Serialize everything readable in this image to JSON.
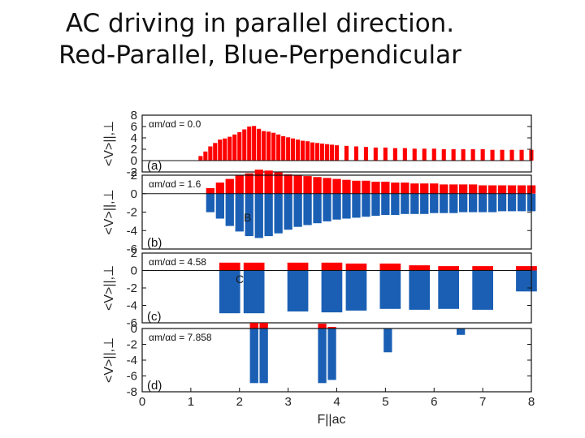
{
  "slide": {
    "title_line1": "AC driving in parallel direction.",
    "title_line2": "Red-Parallel, Blue-Perpendicular"
  },
  "colors": {
    "parallel": "#ff0000",
    "perpendicular": "#1a5fb4",
    "axis": "#111111"
  },
  "chart_data": [
    {
      "type": "bar",
      "panel": "(a)",
      "ratio_label": "αm/αd = 0.0",
      "letter": "",
      "ylabel": "<V>||,⊥",
      "xlabel": "F||ac",
      "xlim": [
        0,
        8
      ],
      "ylim": [
        -2,
        8
      ],
      "yticks": [
        -2,
        0,
        2,
        4,
        6,
        8
      ],
      "xticks": [],
      "series": [
        {
          "name": "Parallel",
          "color": "#ff0000",
          "x": [
            1.2,
            1.3,
            1.4,
            1.5,
            1.6,
            1.7,
            1.8,
            1.9,
            2.0,
            2.1,
            2.2,
            2.3,
            2.4,
            2.5,
            2.6,
            2.7,
            2.8,
            2.9,
            3.0,
            3.1,
            3.2,
            3.3,
            3.4,
            3.5,
            3.6,
            3.7,
            3.8,
            3.9,
            4.0,
            4.2,
            4.4,
            4.6,
            4.8,
            5.0,
            5.2,
            5.4,
            5.6,
            5.8,
            6.0,
            6.2,
            6.4,
            6.6,
            6.8,
            7.0,
            7.2,
            7.4,
            7.6,
            7.8,
            8.0
          ],
          "values": [
            0.8,
            1.6,
            2.5,
            3.1,
            3.7,
            3.9,
            4.2,
            4.6,
            5.0,
            5.5,
            6.0,
            6.1,
            5.6,
            5.2,
            5.1,
            4.9,
            4.6,
            4.3,
            4.1,
            3.9,
            3.7,
            3.5,
            3.4,
            3.2,
            3.1,
            3.0,
            2.9,
            2.8,
            2.7,
            2.6,
            2.5,
            2.4,
            2.3,
            2.3,
            2.2,
            2.2,
            2.1,
            2.1,
            2.1,
            2.0,
            2.0,
            2.0,
            2.0,
            2.0,
            1.9,
            1.9,
            1.9,
            1.9,
            1.9
          ]
        }
      ]
    },
    {
      "type": "bar",
      "panel": "(b)",
      "ratio_label": "αm/αd = 1.6",
      "letter": "B",
      "ylabel": "<V>||,⊥",
      "xlabel": "F||ac",
      "xlim": [
        0,
        8
      ],
      "ylim": [
        -6,
        2
      ],
      "yticks": [
        -6,
        -4,
        -2,
        0,
        2
      ],
      "xticks": [],
      "series": [
        {
          "name": "Parallel",
          "color": "#ff0000",
          "x": [
            1.4,
            1.6,
            1.8,
            2.0,
            2.2,
            2.4,
            2.6,
            2.8,
            3.0,
            3.2,
            3.4,
            3.6,
            3.8,
            4.0,
            4.2,
            4.4,
            4.6,
            4.8,
            5.0,
            5.2,
            5.4,
            5.6,
            5.8,
            6.0,
            6.2,
            6.4,
            6.6,
            6.8,
            7.0,
            7.2,
            7.4,
            7.6,
            7.8,
            8.0
          ],
          "values": [
            0.6,
            1.2,
            1.6,
            2.0,
            2.2,
            2.6,
            2.5,
            2.3,
            2.1,
            2.0,
            1.9,
            1.8,
            1.7,
            1.6,
            1.5,
            1.4,
            1.4,
            1.3,
            1.3,
            1.2,
            1.2,
            1.1,
            1.1,
            1.1,
            1.0,
            1.0,
            1.0,
            1.0,
            0.9,
            0.9,
            0.9,
            0.9,
            0.9,
            0.9
          ]
        },
        {
          "name": "Perpendicular",
          "color": "#1a5fb4",
          "x": [
            1.4,
            1.6,
            1.8,
            2.0,
            2.2,
            2.4,
            2.6,
            2.8,
            3.0,
            3.2,
            3.4,
            3.6,
            3.8,
            4.0,
            4.2,
            4.4,
            4.6,
            4.8,
            5.0,
            5.2,
            5.4,
            5.6,
            5.8,
            6.0,
            6.2,
            6.4,
            6.6,
            6.8,
            7.0,
            7.2,
            7.4,
            7.6,
            7.8,
            8.0
          ],
          "values": [
            -2.0,
            -2.7,
            -3.5,
            -4.1,
            -4.6,
            -4.8,
            -4.6,
            -4.3,
            -3.9,
            -3.6,
            -3.4,
            -3.2,
            -3.0,
            -2.8,
            -2.7,
            -2.6,
            -2.5,
            -2.4,
            -2.3,
            -2.3,
            -2.2,
            -2.2,
            -2.2,
            -2.1,
            -2.1,
            -2.1,
            -2.0,
            -2.0,
            -2.0,
            -2.0,
            -1.9,
            -1.9,
            -1.9,
            -1.9
          ]
        }
      ]
    },
    {
      "type": "bar",
      "panel": "(c)",
      "ratio_label": "αm/αd = 4.58",
      "letter": "C",
      "ylabel": "<V>||,⊥",
      "xlabel": "F||ac",
      "xlim": [
        0,
        8
      ],
      "ylim": [
        -6,
        2
      ],
      "yticks": [
        -6,
        -4,
        -2,
        0,
        2
      ],
      "xticks": [],
      "series": [
        {
          "name": "Parallel",
          "color": "#ff0000",
          "x": [
            1.8,
            2.3,
            3.2,
            3.9,
            4.4,
            5.1,
            5.7,
            6.3,
            7.0,
            7.9
          ],
          "values": [
            0.9,
            0.9,
            0.9,
            0.9,
            0.8,
            0.8,
            0.6,
            0.5,
            0.5,
            0.5
          ]
        },
        {
          "name": "Perpendicular",
          "color": "#1a5fb4",
          "x": [
            1.8,
            2.3,
            3.2,
            3.9,
            4.4,
            5.1,
            5.7,
            6.3,
            7.0,
            7.9
          ],
          "values": [
            -4.9,
            -4.9,
            -4.7,
            -4.8,
            -4.6,
            -4.4,
            -4.5,
            -4.4,
            -4.5,
            -2.4
          ]
        }
      ]
    },
    {
      "type": "bar",
      "panel": "(d)",
      "ratio_label": "αm/αd = 7.858",
      "letter": "",
      "ylabel": "<V>||,⊥",
      "xlabel": "F||ac",
      "xlim": [
        0,
        8
      ],
      "ylim": [
        -8,
        0
      ],
      "yticks": [
        -8,
        -6,
        -4,
        -2,
        0
      ],
      "xticks": [
        0,
        1,
        2,
        3,
        4,
        5,
        6,
        7,
        8
      ],
      "series": [
        {
          "name": "Parallel",
          "color": "#ff0000",
          "x": [
            2.3,
            2.5,
            3.7,
            3.9
          ],
          "values": [
            0.7,
            0.7,
            0.6,
            0.2
          ]
        },
        {
          "name": "Perpendicular",
          "color": "#1a5fb4",
          "x": [
            2.3,
            2.5,
            3.7,
            3.9,
            5.05,
            6.55
          ],
          "values": [
            -6.9,
            -6.9,
            -6.9,
            -6.5,
            -3.0,
            -0.8
          ]
        }
      ]
    }
  ]
}
